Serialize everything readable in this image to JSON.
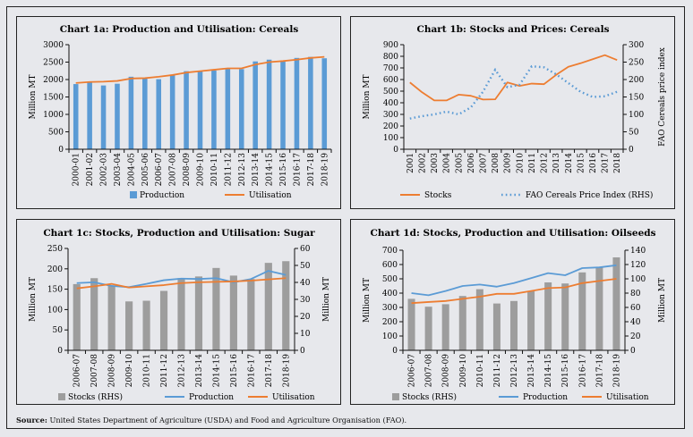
{
  "source": {
    "label": "Source:",
    "text": " United States Department of Agriculture (USDA) and Food and Agriculture Organisation (FAO)."
  },
  "colors": {
    "production_blue": "#5b9bd5",
    "utilisation_orange": "#ed7d31",
    "stocks_grey": "#9d9d9d",
    "background": "#e7e8ec"
  },
  "chart_data": [
    {
      "id": "1a",
      "type": "bar",
      "title": "Chart 1a: Production and Utilisation: Cereals",
      "xlabel": "",
      "ylabel": "Million MT",
      "ylim": [
        0,
        3000
      ],
      "yticks": [
        0,
        500,
        1000,
        1500,
        2000,
        2500,
        3000
      ],
      "grid": false,
      "legend": "bottom",
      "categories": [
        "2000-01",
        "2001-02",
        "2002-03",
        "2003-04",
        "2004-05",
        "2005-06",
        "2006-07",
        "2007-08",
        "2008-09",
        "2009-10",
        "2010-11",
        "2011-12",
        "2012-13",
        "2013-14",
        "2014-15",
        "2015-16",
        "2016-17",
        "2017-18",
        "2018-19"
      ],
      "series": [
        {
          "name": "Production",
          "kind": "bar",
          "axis": "left",
          "color": "#5b9bd5",
          "values": [
            1870,
            1910,
            1830,
            1880,
            2080,
            2030,
            2010,
            2120,
            2240,
            2250,
            2260,
            2310,
            2300,
            2520,
            2570,
            2540,
            2620,
            2650,
            2610
          ]
        },
        {
          "name": "Utilisation",
          "kind": "line",
          "axis": "left",
          "color": "#ed7d31",
          "values": [
            1900,
            1930,
            1940,
            1960,
            2030,
            2040,
            2080,
            2130,
            2200,
            2240,
            2280,
            2320,
            2320,
            2430,
            2500,
            2530,
            2570,
            2620,
            2650
          ]
        }
      ]
    },
    {
      "id": "1b",
      "type": "line",
      "title": "Chart 1b: Stocks and Prices: Cereals",
      "xlabel": "",
      "ylabel": "Million MT",
      "ylabel_right": "FAO Cereals price index",
      "ylim": [
        0,
        900
      ],
      "ylim_right": [
        0,
        300
      ],
      "yticks": [
        0,
        100,
        200,
        300,
        400,
        500,
        600,
        700,
        800,
        900
      ],
      "yticks_right": [
        0,
        50,
        100,
        150,
        200,
        250,
        300
      ],
      "grid": false,
      "legend": "bottom",
      "categories": [
        "2001",
        "2002",
        "2003",
        "2004",
        "2005",
        "2006",
        "2007",
        "2008",
        "2009",
        "2010",
        "2011",
        "2012",
        "2013",
        "2014",
        "2015",
        "2016",
        "2017",
        "2018"
      ],
      "series": [
        {
          "name": "Stocks",
          "kind": "line",
          "axis": "left",
          "color": "#ed7d31",
          "values": [
            575,
            490,
            420,
            420,
            470,
            460,
            428,
            430,
            575,
            545,
            565,
            560,
            640,
            710,
            740,
            775,
            810,
            768
          ]
        },
        {
          "name": "FAO Cereals Price Index (RHS)",
          "kind": "dotted",
          "axis": "right",
          "color": "#5b9bd5",
          "values": [
            88,
            95,
            100,
            108,
            100,
            120,
            165,
            228,
            178,
            185,
            238,
            235,
            215,
            190,
            165,
            150,
            152,
            165
          ]
        }
      ]
    },
    {
      "id": "1c",
      "type": "bar",
      "title": "Chart 1c: Stocks, Production and Utilisation: Sugar",
      "xlabel": "",
      "ylabel": "Million MT",
      "ylabel_right": "Million MT",
      "ylim": [
        0,
        250
      ],
      "ylim_right": [
        0,
        60
      ],
      "yticks": [
        0,
        50,
        100,
        150,
        200,
        250
      ],
      "yticks_right": [
        0,
        10,
        20,
        30,
        40,
        50,
        60
      ],
      "grid": false,
      "legend": "bottom",
      "categories": [
        "2006-07",
        "2007-08",
        "2008-09",
        "2009-10",
        "2010-11",
        "2011-12",
        "2012-13",
        "2013-14",
        "2014-15",
        "2015-16",
        "2016-17",
        "2017-18",
        "2018-19"
      ],
      "series": [
        {
          "name": "Stocks (RHS)",
          "kind": "bar",
          "axis": "right",
          "color": "#9d9d9d",
          "values": [
            39,
            42.5,
            38,
            28.8,
            29.2,
            35,
            42.5,
            43.5,
            48.5,
            44,
            42,
            51.5,
            52.5
          ]
        },
        {
          "name": "Production",
          "kind": "line",
          "axis": "left",
          "color": "#5b9bd5",
          "values": [
            165,
            167,
            158,
            155,
            163,
            172,
            176,
            175,
            177,
            167,
            175,
            195,
            185
          ]
        },
        {
          "name": "Utilisation",
          "kind": "line",
          "axis": "left",
          "color": "#ed7d31",
          "values": [
            152,
            157,
            163,
            154,
            157,
            160,
            165,
            167,
            168,
            169,
            171,
            174,
            177
          ]
        }
      ]
    },
    {
      "id": "1d",
      "type": "bar",
      "title": "Chart 1d: Stocks, Production and Utilisation: Oilseeds",
      "xlabel": "",
      "ylabel": "Million MT",
      "ylabel_right": "Million MT",
      "ylim": [
        0,
        700
      ],
      "ylim_right": [
        0,
        140
      ],
      "yticks": [
        0,
        100,
        200,
        300,
        400,
        500,
        600,
        700
      ],
      "yticks_right": [
        0,
        20,
        40,
        60,
        80,
        100,
        120,
        140
      ],
      "grid": false,
      "legend": "bottom",
      "categories": [
        "2006-07",
        "2007-08",
        "2008-09",
        "2009-10",
        "2010-11",
        "2011-12",
        "2012-13",
        "2013-14",
        "2014-15",
        "2015-16",
        "2016-17",
        "2017-18",
        "2018-19"
      ],
      "series": [
        {
          "name": "Stocks (RHS)",
          "kind": "bar",
          "axis": "right",
          "color": "#9d9d9d",
          "values": [
            72,
            61,
            64.5,
            76,
            85.5,
            65.5,
            69,
            83,
            95,
            93.5,
            109,
            116,
            130
          ]
        },
        {
          "name": "Production",
          "kind": "line",
          "axis": "left",
          "color": "#5b9bd5",
          "values": [
            400,
            385,
            415,
            450,
            460,
            445,
            470,
            505,
            540,
            525,
            575,
            580,
            595
          ]
        },
        {
          "name": "Utilisation",
          "kind": "line",
          "axis": "left",
          "color": "#ed7d31",
          "values": [
            330,
            338,
            345,
            360,
            375,
            395,
            395,
            415,
            435,
            440,
            470,
            485,
            500
          ]
        }
      ]
    }
  ]
}
